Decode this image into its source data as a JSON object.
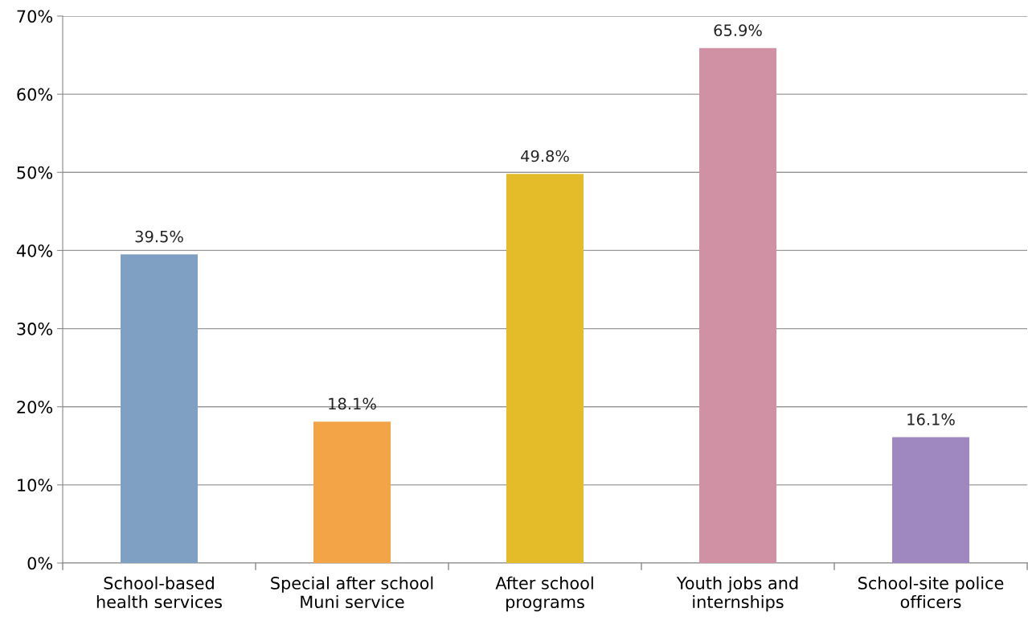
{
  "chart_data": {
    "type": "bar",
    "categories": [
      "School-based\nhealth services",
      "Special after school\nMuni service",
      "After school\nprograms",
      "Youth jobs and\ninternships",
      "School-site police\nofficers"
    ],
    "values": [
      39.5,
      18.1,
      49.8,
      65.9,
      16.1
    ],
    "colors": [
      "#7f9fc3",
      "#f2a446",
      "#e4bc2a",
      "#d191a5",
      "#9f88c0"
    ],
    "value_labels": [
      "39.5%",
      "18.1%",
      "49.8%",
      "65.9%",
      "16.1%"
    ],
    "ylim": [
      0,
      70
    ],
    "yticks": [
      {
        "value": 0,
        "label": "0%"
      },
      {
        "value": 10,
        "label": "10%"
      },
      {
        "value": 20,
        "label": "20%"
      },
      {
        "value": 30,
        "label": "30%"
      },
      {
        "value": 40,
        "label": "40%"
      },
      {
        "value": 50,
        "label": "50%"
      },
      {
        "value": 60,
        "label": "60%"
      },
      {
        "value": 70,
        "label": "70%"
      }
    ],
    "grid": "y",
    "legend": false
  }
}
